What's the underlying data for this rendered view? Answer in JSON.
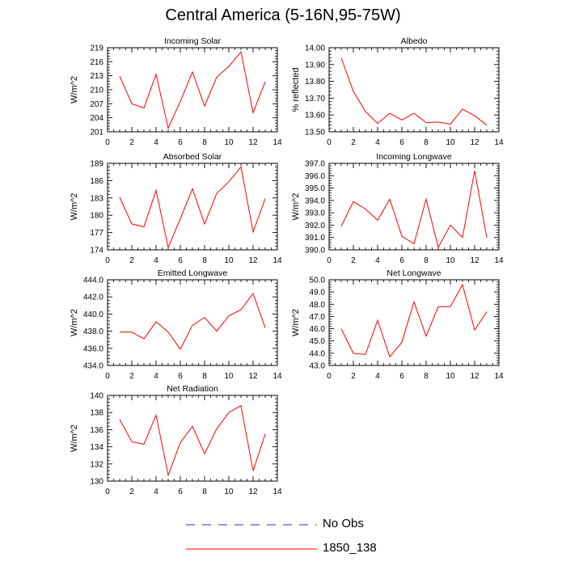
{
  "page": {
    "title": "Central America (5-16N,95-75W)"
  },
  "legend": {
    "items": [
      {
        "label": "No Obs",
        "color": "#2a2ad0",
        "style": "dashed"
      },
      {
        "label": "1850_138",
        "color": "#ff0000",
        "style": "solid"
      }
    ]
  },
  "chart_data": [
    {
      "type": "line",
      "title": "Incoming Solar",
      "ylabel": "W/m^2",
      "xlim": [
        0,
        14
      ],
      "xticks": [
        0,
        2,
        4,
        6,
        8,
        10,
        12,
        14
      ],
      "ylim": [
        201,
        219
      ],
      "yticks": [
        201,
        204,
        207,
        210,
        213,
        216,
        219
      ],
      "ytick_labels": [
        "201",
        "204",
        "207",
        "210",
        "213",
        "216",
        "219"
      ],
      "grid": false,
      "series": [
        {
          "color": "#ff0000",
          "x": [
            1,
            2,
            3,
            4,
            5,
            6,
            7,
            8,
            9,
            10,
            11,
            12,
            13
          ],
          "y": [
            212.9,
            207.0,
            206.1,
            213.3,
            201.8,
            207.5,
            213.8,
            206.5,
            212.7,
            215.0,
            218.1,
            205.1,
            211.7
          ]
        }
      ]
    },
    {
      "type": "line",
      "title": "Albedo",
      "ylabel": "% reflected",
      "xlim": [
        0,
        14
      ],
      "xticks": [
        0,
        2,
        4,
        6,
        8,
        10,
        12,
        14
      ],
      "ylim": [
        13.5,
        14.0
      ],
      "yticks": [
        13.5,
        13.6,
        13.7,
        13.8,
        13.9,
        14.0
      ],
      "ytick_labels": [
        "13.50",
        "13.60",
        "13.70",
        "13.80",
        "13.90",
        "14.00"
      ],
      "grid": false,
      "series": [
        {
          "color": "#ff0000",
          "x": [
            1,
            2,
            3,
            4,
            5,
            6,
            7,
            8,
            9,
            10,
            11,
            12,
            13
          ],
          "y": [
            13.94,
            13.74,
            13.62,
            13.55,
            13.61,
            13.57,
            13.61,
            13.555,
            13.558,
            13.545,
            13.635,
            13.595,
            13.54
          ]
        }
      ]
    },
    {
      "type": "line",
      "title": "Absorbed Solar",
      "ylabel": "W/m^2",
      "xlim": [
        0,
        14
      ],
      "xticks": [
        0,
        2,
        4,
        6,
        8,
        10,
        12,
        14
      ],
      "ylim": [
        174,
        189
      ],
      "yticks": [
        174,
        177,
        180,
        183,
        186,
        189
      ],
      "ytick_labels": [
        "174",
        "177",
        "180",
        "183",
        "186",
        "189"
      ],
      "grid": false,
      "series": [
        {
          "color": "#ff0000",
          "x": [
            1,
            2,
            3,
            4,
            5,
            6,
            7,
            8,
            9,
            10,
            11,
            12,
            13
          ],
          "y": [
            183.1,
            178.5,
            178.0,
            184.3,
            174.4,
            179.4,
            184.6,
            178.5,
            183.8,
            185.8,
            188.4,
            177.1,
            182.9
          ]
        }
      ]
    },
    {
      "type": "line",
      "title": "Incoming Longwave",
      "ylabel": "W/m^2",
      "xlim": [
        0,
        14
      ],
      "xticks": [
        0,
        2,
        4,
        6,
        8,
        10,
        12,
        14
      ],
      "ylim": [
        390,
        397
      ],
      "yticks": [
        390,
        391,
        392,
        393,
        394,
        395,
        396,
        397
      ],
      "ytick_labels": [
        "390.0",
        "391.0",
        "392.0",
        "393.0",
        "394.0",
        "395.0",
        "396.0",
        "397.0"
      ],
      "grid": false,
      "series": [
        {
          "color": "#ff0000",
          "x": [
            1,
            2,
            3,
            4,
            5,
            6,
            7,
            8,
            9,
            10,
            11,
            12,
            13
          ],
          "y": [
            391.9,
            393.9,
            393.3,
            392.4,
            394.1,
            391.1,
            390.5,
            394.1,
            390.2,
            392.0,
            391.0,
            396.4,
            391.0
          ]
        }
      ]
    },
    {
      "type": "line",
      "title": "Emitted Longwave",
      "ylabel": "W/m^2",
      "xlim": [
        0,
        14
      ],
      "xticks": [
        0,
        2,
        4,
        6,
        8,
        10,
        12,
        14
      ],
      "ylim": [
        434,
        444
      ],
      "yticks": [
        434,
        436,
        438,
        440,
        442,
        444
      ],
      "ytick_labels": [
        "434.0",
        "436.0",
        "438.0",
        "440.0",
        "442.0",
        "444.0"
      ],
      "grid": false,
      "series": [
        {
          "color": "#ff0000",
          "x": [
            1,
            2,
            3,
            4,
            5,
            6,
            7,
            8,
            9,
            10,
            11,
            12,
            13
          ],
          "y": [
            437.9,
            437.9,
            437.1,
            439.1,
            437.9,
            435.9,
            438.7,
            439.6,
            438.0,
            439.8,
            440.5,
            442.4,
            438.4
          ]
        }
      ]
    },
    {
      "type": "line",
      "title": "Net Longwave",
      "ylabel": "W/m^2",
      "xlim": [
        0,
        14
      ],
      "xticks": [
        0,
        2,
        4,
        6,
        8,
        10,
        12,
        14
      ],
      "ylim": [
        43,
        50
      ],
      "yticks": [
        43,
        44,
        45,
        46,
        47,
        48,
        49,
        50
      ],
      "ytick_labels": [
        "43.0",
        "44.0",
        "45.0",
        "46.0",
        "47.0",
        "48.0",
        "49.0",
        "50.0"
      ],
      "grid": false,
      "series": [
        {
          "color": "#ff0000",
          "x": [
            1,
            2,
            3,
            4,
            5,
            6,
            7,
            8,
            9,
            10,
            11,
            12,
            13
          ],
          "y": [
            46.0,
            44.0,
            43.9,
            46.7,
            43.7,
            44.9,
            48.2,
            45.4,
            47.8,
            47.8,
            49.6,
            45.9,
            47.4
          ]
        }
      ]
    },
    {
      "type": "line",
      "title": "Net Radiation",
      "ylabel": "W/m^2",
      "xlim": [
        0,
        14
      ],
      "xticks": [
        0,
        2,
        4,
        6,
        8,
        10,
        12,
        14
      ],
      "ylim": [
        130,
        140
      ],
      "yticks": [
        130,
        132,
        134,
        136,
        138,
        140
      ],
      "ytick_labels": [
        "130",
        "132",
        "134",
        "136",
        "138",
        "140"
      ],
      "grid": false,
      "series": [
        {
          "color": "#ff0000",
          "x": [
            1,
            2,
            3,
            4,
            5,
            6,
            7,
            8,
            9,
            10,
            11,
            12,
            13
          ],
          "y": [
            137.2,
            134.6,
            134.3,
            137.7,
            130.7,
            134.5,
            136.4,
            133.2,
            136.1,
            138.0,
            138.8,
            131.2,
            135.5
          ]
        }
      ]
    }
  ]
}
